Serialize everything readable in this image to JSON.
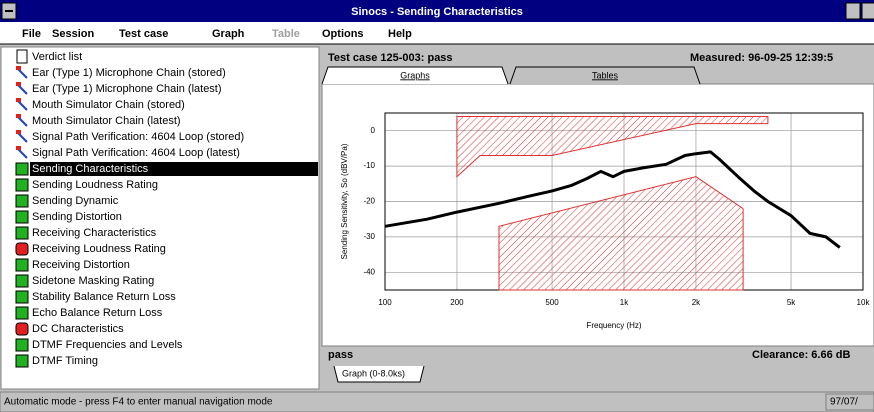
{
  "window": {
    "title": "Sinocs - Sending Characteristics"
  },
  "menu": [
    {
      "label": "File",
      "enabled": true
    },
    {
      "label": "Session",
      "enabled": true
    },
    {
      "label": "Test case",
      "enabled": true
    },
    {
      "label": "Graph",
      "enabled": true
    },
    {
      "label": "Table",
      "enabled": false
    },
    {
      "label": "Options",
      "enabled": true
    },
    {
      "label": "Help",
      "enabled": true
    }
  ],
  "tree": {
    "selected": 7,
    "items": [
      {
        "label": "Verdict list",
        "icon": "doc"
      },
      {
        "label": "Ear (Type 1) Microphone Chain (stored)",
        "icon": "link"
      },
      {
        "label": "Ear (Type 1) Microphone Chain (latest)",
        "icon": "link"
      },
      {
        "label": "Mouth Simulator Chain (stored)",
        "icon": "link"
      },
      {
        "label": "Mouth Simulator Chain (latest)",
        "icon": "link"
      },
      {
        "label": "Signal Path Verification: 4604 Loop (stored)",
        "icon": "link"
      },
      {
        "label": "Signal Path Verification: 4604 Loop (latest)",
        "icon": "link"
      },
      {
        "label": "Sending Characteristics",
        "icon": "pass"
      },
      {
        "label": "Sending Loudness Rating",
        "icon": "pass"
      },
      {
        "label": "Sending Dynamic",
        "icon": "pass"
      },
      {
        "label": "Sending Distortion",
        "icon": "pass"
      },
      {
        "label": "Receiving Characteristics",
        "icon": "pass"
      },
      {
        "label": "Receiving Loudness Rating",
        "icon": "fail"
      },
      {
        "label": "Receiving Distortion",
        "icon": "pass"
      },
      {
        "label": "Sidetone Masking Rating",
        "icon": "pass"
      },
      {
        "label": "Stability Balance Return Loss",
        "icon": "pass"
      },
      {
        "label": "Echo Balance Return Loss",
        "icon": "pass"
      },
      {
        "label": "DC Characteristics",
        "icon": "fail"
      },
      {
        "label": "DTMF Frequencies and Levels",
        "icon": "pass"
      },
      {
        "label": "DTMF Timing",
        "icon": "pass"
      }
    ]
  },
  "panel": {
    "test_case": "Test case 125-003: pass",
    "measured": "Measured: 96-09-25 12:39:5",
    "tabs": [
      "Graphs",
      "Tables"
    ],
    "verdict": "pass",
    "clearance": "Clearance: 6.66 dB",
    "bottom_tab": "Graph (0-8.0ks)"
  },
  "status_bar": {
    "message": "Automatic mode - press F4 to enter manual navigation mode",
    "right": "97/07/"
  },
  "chart_data": {
    "type": "line",
    "x_label": "Frequency (Hz)",
    "y_label": "Sending Sensitivity, So (dBV/Pa)",
    "xlim": [
      100,
      10000
    ],
    "x_log": true,
    "xticks": [
      100,
      200,
      500,
      {
        "value": 1000,
        "label": "1k"
      },
      {
        "value": 2000,
        "label": "2k"
      },
      {
        "value": 5000,
        "label": "5k"
      },
      {
        "value": 10000,
        "label": "10k"
      }
    ],
    "ylim": [
      -45,
      5
    ],
    "yticks": [
      0,
      -10,
      -20,
      -30,
      -40
    ],
    "grid": true,
    "series": [
      {
        "color": "#e03030",
        "fill": "hatch",
        "x": [
          200,
          250,
          500,
          2000,
          4000,
          4000,
          200
        ],
        "values": [
          -13,
          -7,
          -7,
          2,
          2,
          4,
          4
        ]
      },
      {
        "color": "#e03030",
        "fill": "hatch",
        "x": [
          300,
          2000,
          3150,
          3150,
          300
        ],
        "values": [
          -27,
          -13,
          -22,
          -45,
          -45
        ]
      },
      {
        "color": "#000000",
        "fill": "none",
        "x": [
          100,
          150,
          200,
          300,
          400,
          500,
          600,
          700,
          800,
          900,
          1000,
          1200,
          1500,
          1800,
          2000,
          2300,
          2500,
          3000,
          3500,
          4000,
          5000,
          6000,
          7000,
          8000
        ],
        "values": [
          -27,
          -25,
          -23,
          -20.5,
          -18.5,
          -17,
          -15.5,
          -13.5,
          -11.5,
          -13,
          -11.5,
          -10.5,
          -9.5,
          -7,
          -6.5,
          -6,
          -8,
          -13,
          -17,
          -20,
          -24,
          -29,
          -30,
          -33
        ]
      }
    ]
  }
}
